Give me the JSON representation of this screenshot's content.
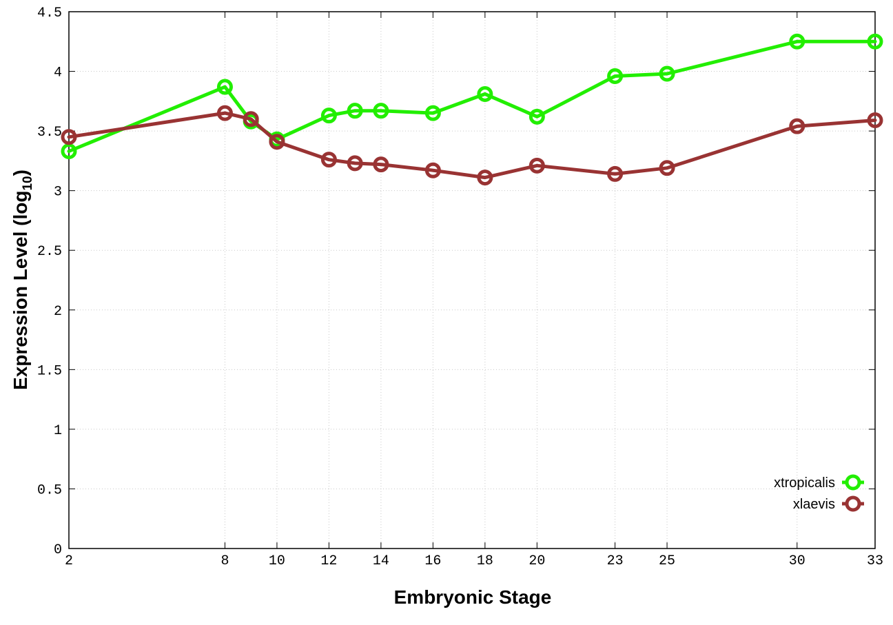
{
  "chart_data": {
    "type": "line",
    "xlabel": "Embryonic Stage",
    "ylabel_main": "Expression Level (log",
    "ylabel_sub": "10",
    "ylabel_close": ")",
    "categories": [
      "2",
      "8",
      "9",
      "10",
      "12",
      "13",
      "14",
      "16",
      "18",
      "20",
      "23",
      "25",
      "30",
      "33"
    ],
    "x": [
      2,
      8,
      9,
      10,
      12,
      13,
      14,
      16,
      18,
      20,
      23,
      25,
      30,
      33
    ],
    "xticks": [
      2,
      8,
      10,
      12,
      14,
      16,
      18,
      20,
      23,
      25,
      30,
      33
    ],
    "xtick_labels": [
      "2",
      "8",
      "10",
      "12",
      "14",
      "16",
      "18",
      "20",
      "23",
      "25",
      "30",
      "33"
    ],
    "xlim": [
      2,
      33
    ],
    "ylim": [
      0,
      4.5
    ],
    "yticks": [
      0,
      0.5,
      1,
      1.5,
      2,
      2.5,
      3,
      3.5,
      4,
      4.5
    ],
    "ytick_labels": [
      "0",
      "0.5",
      "1",
      "1.5",
      "2",
      "2.5",
      "3",
      "3.5",
      "4",
      "4.5"
    ],
    "grid": true,
    "legend_position": "bottom-right",
    "series": [
      {
        "name": "xtropicalis",
        "color": "#22ee00",
        "values": [
          3.33,
          3.87,
          3.58,
          3.43,
          3.63,
          3.67,
          3.67,
          3.65,
          3.81,
          3.62,
          3.96,
          3.98,
          4.25,
          4.25
        ]
      },
      {
        "name": "xlaevis",
        "color": "#993333",
        "values": [
          3.45,
          3.65,
          3.6,
          3.41,
          3.26,
          3.23,
          3.22,
          3.17,
          3.11,
          3.21,
          3.14,
          3.19,
          3.54,
          3.59
        ]
      }
    ]
  }
}
